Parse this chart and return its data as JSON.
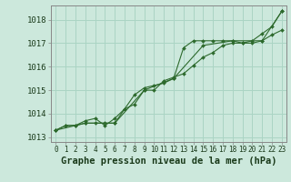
{
  "title": "Graphe pression niveau de la mer (hPa)",
  "background_color": "#cce8dc",
  "grid_color": "#aad4c4",
  "line_color": "#2d6a2d",
  "marker_color": "#2d6a2d",
  "xlim": [
    -0.5,
    23.5
  ],
  "ylim": [
    1012.8,
    1018.6
  ],
  "yticks": [
    1013,
    1014,
    1015,
    1016,
    1017,
    1018
  ],
  "xticks": [
    0,
    1,
    2,
    3,
    4,
    5,
    6,
    7,
    8,
    9,
    10,
    11,
    12,
    13,
    14,
    15,
    16,
    17,
    18,
    19,
    20,
    21,
    22,
    23
  ],
  "series1": [
    1013.3,
    1013.5,
    1013.5,
    1013.7,
    1013.8,
    1013.5,
    1013.8,
    1014.2,
    1014.8,
    1015.1,
    1015.2,
    1015.3,
    1015.5,
    1016.8,
    1017.1,
    1017.1,
    1017.1,
    1017.1,
    1017.1,
    1017.0,
    1017.1,
    1017.4,
    1017.7,
    1018.35
  ],
  "series2": [
    1013.3,
    1013.5,
    1013.5,
    1013.6,
    1013.6,
    1013.6,
    1013.6,
    1014.2,
    1014.4,
    1015.0,
    1015.0,
    1015.4,
    1015.55,
    1015.7,
    1016.05,
    1016.4,
    1016.6,
    1016.9,
    1017.0,
    1017.0,
    1017.0,
    1017.1,
    1017.35,
    1017.55
  ],
  "series3_x": [
    0,
    3,
    6,
    9,
    12,
    15,
    18,
    21,
    23
  ],
  "series3_y": [
    1013.3,
    1013.6,
    1013.6,
    1015.0,
    1015.5,
    1016.9,
    1017.1,
    1017.1,
    1018.35
  ],
  "xlabel_fontsize": 7.5,
  "ytick_fontsize": 6.5,
  "xtick_fontsize": 5.5
}
